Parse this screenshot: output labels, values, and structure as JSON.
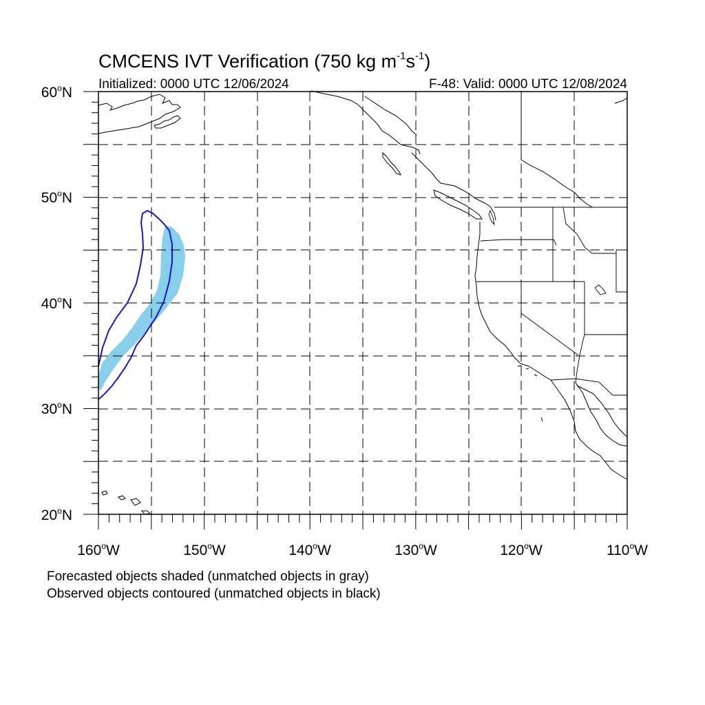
{
  "title": {
    "main": "CMCENS IVT Verification (750 kg m",
    "sup1": "-1",
    "mid": "s",
    "sup2": "-1",
    "close": ")"
  },
  "subtitle": {
    "left": "Initialized: 0000 UTC 12/06/2024",
    "right": "F-48: Valid: 0000 UTC 12/08/2024"
  },
  "map": {
    "lon_range": [
      -160,
      -110
    ],
    "lat_range": [
      20,
      60
    ],
    "lat_tick_labels": [
      "60",
      "50",
      "40",
      "30",
      "20"
    ],
    "lat_tick_suffix": "N",
    "lon_tick_labels": [
      "160",
      "150",
      "140",
      "130",
      "120",
      "110"
    ],
    "lon_tick_suffix": "W",
    "degree_symbol": "o",
    "grid_lines_lon": [
      -155,
      -150,
      -145,
      -140,
      -135,
      -130,
      -125,
      -120,
      -115
    ],
    "grid_lines_lat": [
      25,
      30,
      35,
      40,
      45,
      50,
      55
    ],
    "grid_style": "dashed",
    "colors": {
      "forecast_shading": "#87cfeb",
      "observed_contour": "#1414d8",
      "coastline": "#000000"
    }
  },
  "footnotes": [
    "Forecasted objects shaded (unmatched objects in gray)",
    "Observed objects contoured (unmatched objects in black)"
  ]
}
